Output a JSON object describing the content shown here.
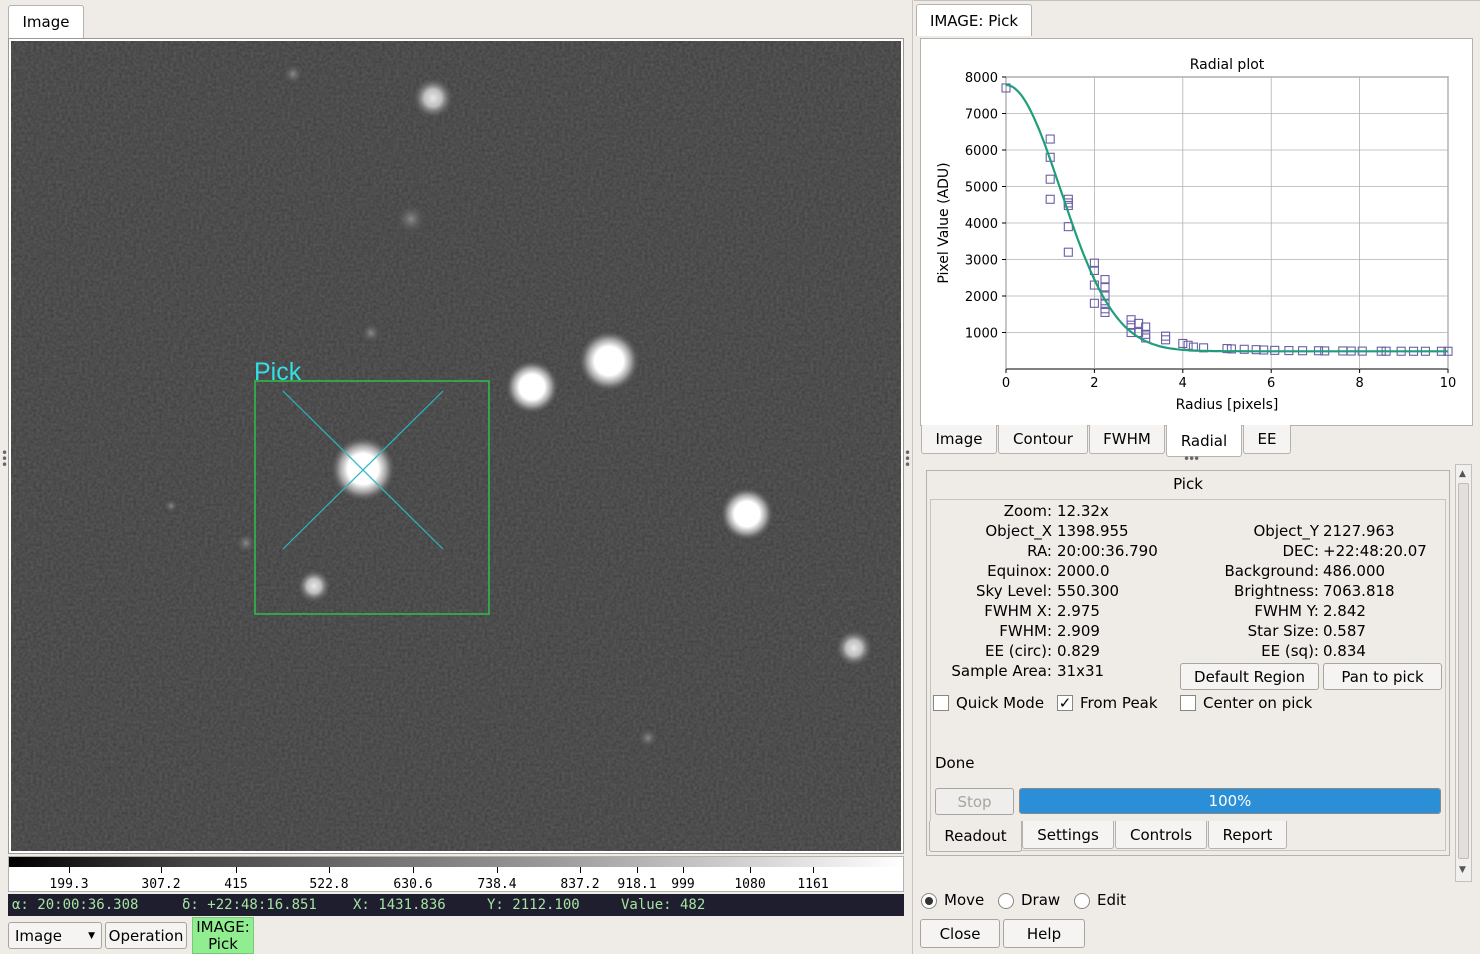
{
  "left": {
    "tab_label": "Image",
    "overlay_label": "Pick",
    "colorbar_labels": [
      "199.3",
      "307.2",
      "415",
      "522.8",
      "630.6",
      "738.4",
      "837.2",
      "918.1",
      "999",
      "1080",
      "1161"
    ],
    "status": {
      "ra": "α: 20:00:36.308",
      "dec": "δ: +22:48:16.851",
      "x": "X: 1431.836",
      "y": "Y: 2112.100",
      "value": "Value: 482"
    },
    "bottom": {
      "channel_select": "Image",
      "operation_button": "Operation",
      "plugin_badge_line1": "IMAGE:",
      "plugin_badge_line2": "Pick"
    },
    "accent": "#a6e3a1"
  },
  "right": {
    "tab_label": "IMAGE: Pick",
    "chart_data": {
      "type": "scatter",
      "title": "Radial plot",
      "xlabel": "Radius [pixels]",
      "ylabel": "Pixel Value (ADU)",
      "xlim": [
        0,
        10
      ],
      "ylim": [
        0,
        8000
      ],
      "xticks": [
        "0",
        "2",
        "4",
        "6",
        "8",
        "10"
      ],
      "yticks": [
        "1000",
        "2000",
        "3000",
        "4000",
        "5000",
        "6000",
        "7000",
        "8000"
      ],
      "grid": true,
      "points_x": [
        0.0,
        1.0,
        1.0,
        1.0,
        1.0,
        1.41,
        1.41,
        1.41,
        1.41,
        1.41,
        2.0,
        2.0,
        2.0,
        2.0,
        2.24,
        2.24,
        2.24,
        2.24,
        2.24,
        2.24,
        2.83,
        2.83,
        2.83,
        3.0,
        3.0,
        3.16,
        3.16,
        3.16,
        3.61,
        3.61,
        4.0,
        4.12,
        4.24,
        4.47,
        5.0,
        5.1,
        5.39,
        5.66,
        5.83,
        6.08,
        6.4,
        6.71,
        7.07,
        7.21,
        7.62,
        7.81,
        8.06,
        8.49,
        8.6,
        8.94,
        9.22,
        9.49,
        9.85,
        10.0
      ],
      "points_y": [
        7700,
        6300,
        5800,
        5200,
        4650,
        4650,
        4550,
        4480,
        3900,
        3200,
        2900,
        2700,
        2300,
        1800,
        2450,
        2250,
        2000,
        1800,
        1650,
        1550,
        1350,
        1200,
        1000,
        1250,
        1000,
        1150,
        950,
        850,
        900,
        800,
        700,
        650,
        600,
        580,
        560,
        550,
        540,
        530,
        520,
        510,
        505,
        500,
        500,
        495,
        495,
        492,
        490,
        488,
        488,
        487,
        486,
        486,
        486,
        486
      ],
      "fit_series": {
        "background": 486,
        "peak": 7296,
        "sigma": 1.235
      },
      "marker_color": "#6b5fa8",
      "fit_color": "#1f9e7a"
    },
    "subtabs": [
      "Image",
      "Contour",
      "FWHM",
      "Radial",
      "EE"
    ],
    "active_subtab": "Radial",
    "pick": {
      "header": "Pick",
      "rows_left": [
        {
          "label": "Zoom:",
          "value": "12.32x"
        },
        {
          "label": "Object_X",
          "value": "1398.955"
        },
        {
          "label": "RA:",
          "value": "20:00:36.790"
        },
        {
          "label": "Equinox:",
          "value": "2000.0"
        },
        {
          "label": "Sky Level:",
          "value": "550.300"
        },
        {
          "label": "FWHM X:",
          "value": "2.975"
        },
        {
          "label": "FWHM:",
          "value": "2.909"
        },
        {
          "label": "EE (circ):",
          "value": "0.829"
        },
        {
          "label": "Sample Area:",
          "value": "31x31"
        }
      ],
      "rows_right": [
        {
          "label": "Object_Y",
          "value": "2127.963"
        },
        {
          "label": "DEC:",
          "value": "+22:48:20.07"
        },
        {
          "label": "Background:",
          "value": "486.000"
        },
        {
          "label": "Brightness:",
          "value": "7063.818"
        },
        {
          "label": "FWHM Y:",
          "value": "2.842"
        },
        {
          "label": "Star Size:",
          "value": "0.587"
        },
        {
          "label": "EE (sq):",
          "value": "0.834"
        }
      ],
      "default_region_button": "Default Region",
      "pan_to_pick_button": "Pan to pick",
      "quick_mode_label": "Quick Mode",
      "from_peak_label": "From Peak",
      "center_on_pick_label": "Center on pick",
      "from_peak_checked": true,
      "status_text": "Done",
      "stop_button": "Stop",
      "progress": 100,
      "progress_label": "100%",
      "progress_color": "#2a8fd6",
      "tabs": [
        "Readout",
        "Settings",
        "Controls",
        "Report"
      ],
      "active_tab": "Readout"
    },
    "mode": {
      "move_label": "Move",
      "draw_label": "Draw",
      "edit_label": "Edit",
      "selected": "Move"
    },
    "close_button": "Close",
    "help_button": "Help"
  }
}
